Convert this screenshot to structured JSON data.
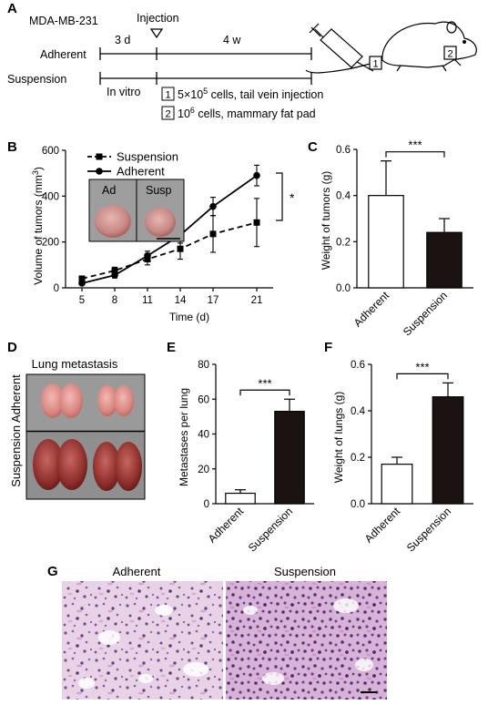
{
  "panelA": {
    "label": "A",
    "cellline": "MDA-MB-231",
    "injection": "Injection",
    "dur1": "3 d",
    "dur2": "4 w",
    "row1": "Adherent",
    "row2": "Suspension",
    "invitro": "In vitro",
    "box1": "1",
    "box2": "2",
    "note1_pre": "5×10",
    "note1_sup": "5",
    "note1_post": " cells, tail vein injection",
    "note2_pre": "10",
    "note2_sup": "6",
    "note2_post": " cells, mammary fat pad"
  },
  "panelB": {
    "label": "B",
    "ylabel_pre": "Volume of tumors (mm",
    "ylabel_sup": "3",
    "ylabel_post": ")",
    "xlabel": "Time (d)",
    "sig": "*",
    "inset_left": "Ad",
    "inset_right": "Susp"
  },
  "panelC": {
    "label": "C",
    "ylabel": "Weight of tumors (g)",
    "sig": "***"
  },
  "panelD": {
    "label": "D",
    "title": "Lung metastasis",
    "side": "Suspension Adherent"
  },
  "panelE": {
    "label": "E",
    "ylabel": "Metastases per lung",
    "sig": "***"
  },
  "panelF": {
    "label": "F",
    "ylabel": "Weight of lungs (g)",
    "sig": "***"
  },
  "panelG": {
    "label": "G",
    "left": "Adherent",
    "right": "Suspension"
  },
  "chart_data": [
    {
      "id": "B",
      "type": "line",
      "x": [
        5,
        8,
        11,
        14,
        17,
        21
      ],
      "xticks": [
        "5",
        "8",
        "11",
        "14",
        "17",
        "21"
      ],
      "ylim": [
        0,
        600
      ],
      "yticks": [
        "0",
        "200",
        "400",
        "600"
      ],
      "grid": false,
      "legend": "top-left",
      "series": [
        {
          "name": "Suspension",
          "values": [
            40,
            75,
            125,
            170,
            235,
            285
          ],
          "err": [
            10,
            15,
            25,
            45,
            80,
            105
          ],
          "dashed": true,
          "marker": "square"
        },
        {
          "name": "Adherent",
          "values": [
            20,
            55,
            140,
            230,
            355,
            490
          ],
          "err": [
            8,
            12,
            20,
            35,
            40,
            45
          ],
          "dashed": false,
          "marker": "circle"
        }
      ]
    },
    {
      "id": "C",
      "type": "bar",
      "categories": [
        "Adherent",
        "Suspension"
      ],
      "values": [
        0.4,
        0.24
      ],
      "err": [
        0.15,
        0.06
      ],
      "colors": [
        "#ffffff",
        "#1b1311"
      ],
      "ylim": [
        0,
        0.6
      ],
      "yticks": [
        "0.0",
        "0.2",
        "0.4",
        "0.6"
      ]
    },
    {
      "id": "E",
      "type": "bar",
      "categories": [
        "Adherent",
        "Suspension"
      ],
      "values": [
        6,
        53
      ],
      "err": [
        2,
        7
      ],
      "colors": [
        "#ffffff",
        "#1b1311"
      ],
      "ylim": [
        0,
        80
      ],
      "yticks": [
        "0",
        "20",
        "40",
        "60",
        "80"
      ]
    },
    {
      "id": "F",
      "type": "bar",
      "categories": [
        "Adherent",
        "Suspension"
      ],
      "values": [
        0.17,
        0.46
      ],
      "err": [
        0.03,
        0.06
      ],
      "colors": [
        "#ffffff",
        "#1b1311"
      ],
      "ylim": [
        0,
        0.6
      ],
      "yticks": [
        "0.0",
        "0.2",
        "0.4",
        "0.6"
      ]
    }
  ]
}
